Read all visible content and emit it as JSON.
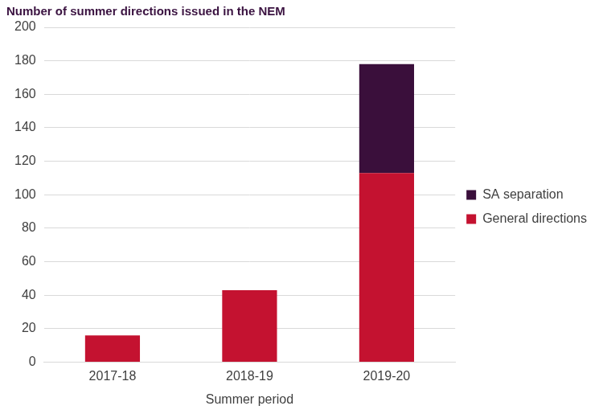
{
  "chart_data": {
    "type": "bar",
    "title": "Number of summer directions issued in the NEM",
    "x_label": "Summer period",
    "categories": [
      "2017-18",
      "2018-19",
      "2019-20"
    ],
    "series": [
      {
        "name": "General directions",
        "color": "#c41230",
        "values": [
          16,
          43,
          113
        ]
      },
      {
        "name": "SA separation",
        "color": "#3a0f3b",
        "values": [
          null,
          null,
          65
        ]
      }
    ],
    "stacked": true,
    "ylim": [
      0,
      200
    ],
    "yticks": [
      0,
      20,
      40,
      60,
      80,
      100,
      120,
      140,
      160,
      180,
      200
    ],
    "grid": true,
    "legend": "right"
  }
}
